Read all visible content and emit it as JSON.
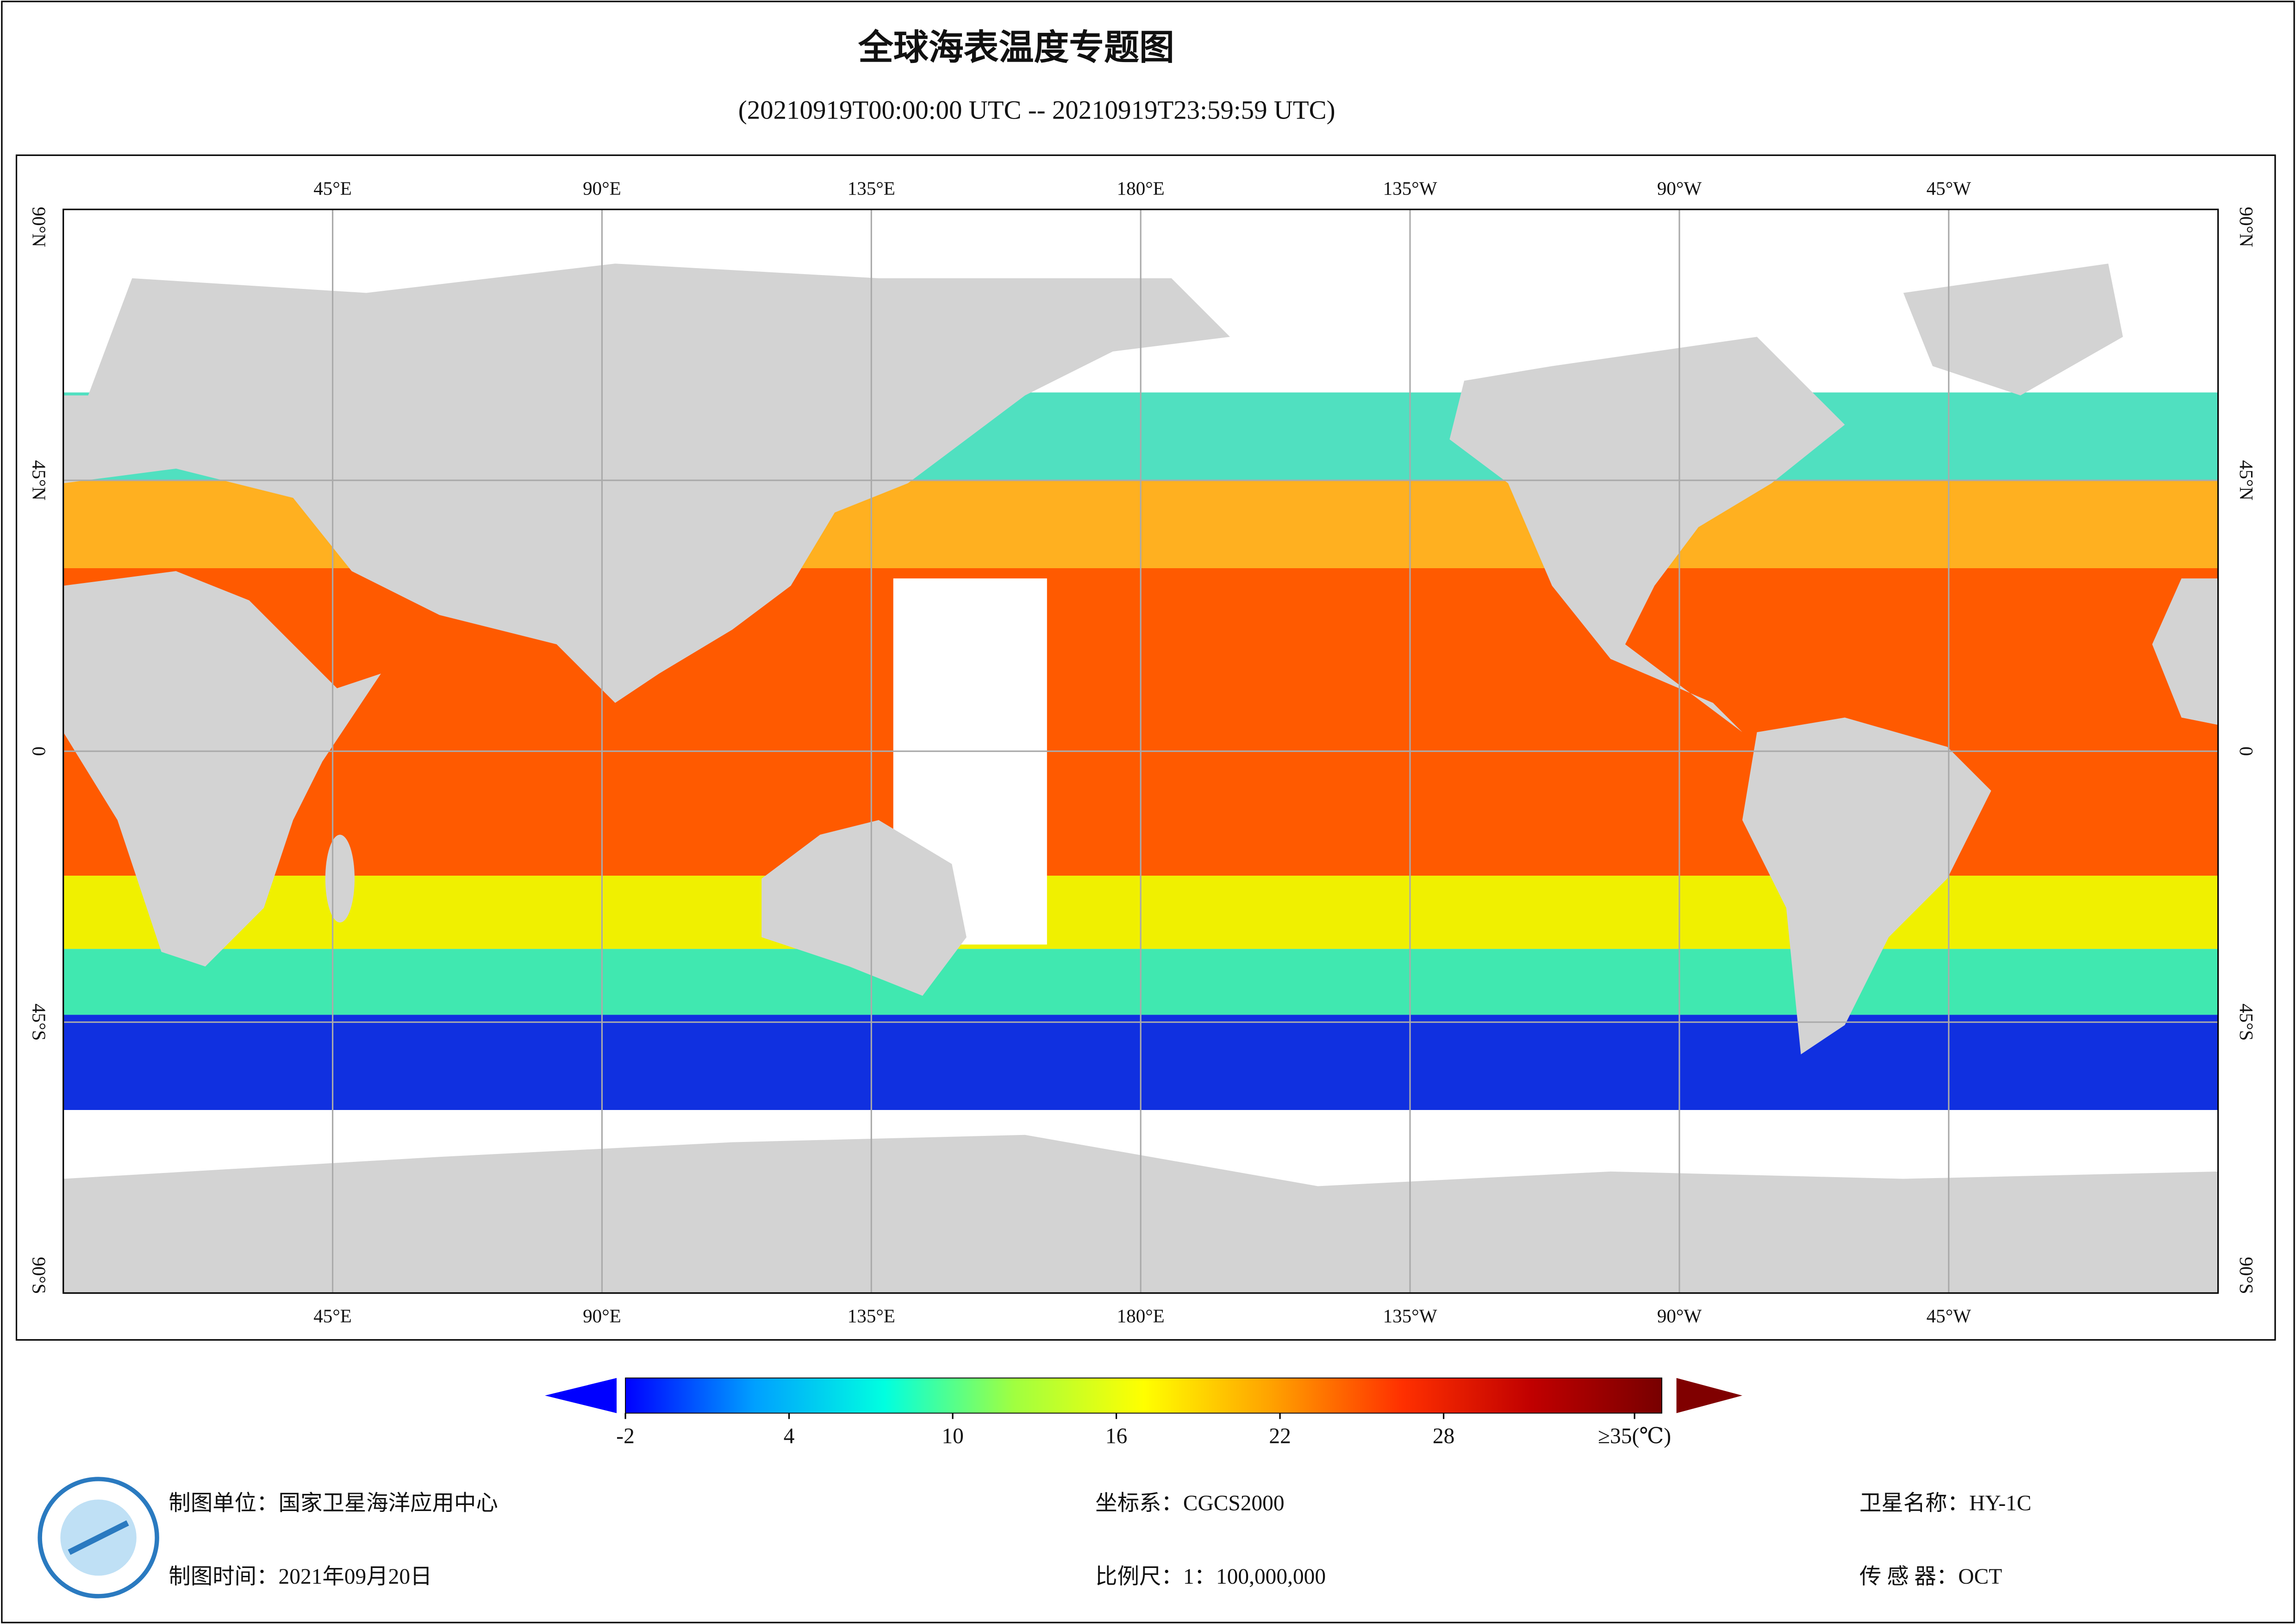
{
  "title": "全球海表温度专题图",
  "subtitle": "(20210919T00:00:00 UTC -- 20210919T23:59:59 UTC)",
  "map": {
    "lonlim": [
      0,
      360
    ],
    "latlim": [
      -90,
      90
    ],
    "lon_ticks": [
      {
        "value": 45,
        "label": "45°E"
      },
      {
        "value": 90,
        "label": "90°E"
      },
      {
        "value": 135,
        "label": "135°E"
      },
      {
        "value": 180,
        "label": "180°E"
      },
      {
        "value": 225,
        "label": "135°W"
      },
      {
        "value": 270,
        "label": "90°W"
      },
      {
        "value": 315,
        "label": "45°W"
      }
    ],
    "lat_ticks": [
      {
        "value": 90,
        "label": "90°N"
      },
      {
        "value": 45,
        "label": "45°N"
      },
      0,
      {
        "value": -45,
        "label": "45°S"
      },
      {
        "value": -90,
        "label": "90°S"
      }
    ],
    "grid": true
  },
  "colorbar": {
    "clim": [
      -2,
      36
    ],
    "ticks": [
      -2,
      4,
      10,
      16,
      22,
      28,
      {
        "value": 35,
        "label": "≥35(℃)"
      }
    ],
    "colors": [
      "#0000ff",
      "#00a0ff",
      "#00ffe0",
      "#a0ff40",
      "#ffff00",
      "#ffa000",
      "#ff3000",
      "#c00000",
      "#780000"
    ],
    "under_color": "#0000ff",
    "over_color": "#800000"
  },
  "footer": [
    [
      "制图单位：国家卫星海洋应用中心",
      "坐标系：CGCS2000",
      "卫星名称：HY-1C"
    ],
    [
      "制图时间：2021年09月20日",
      "比例尺：1：100,000,000",
      "传 感 器：OCT"
    ]
  ]
}
